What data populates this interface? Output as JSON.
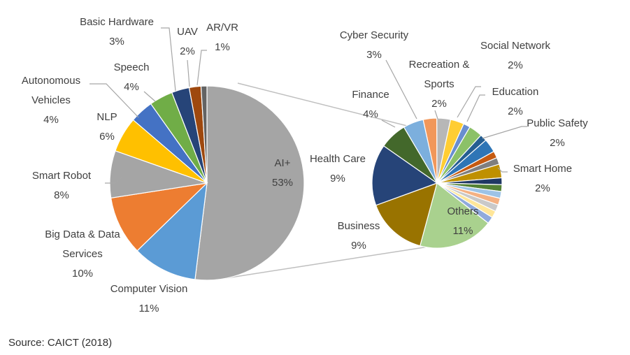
{
  "chart_data": [
    {
      "type": "pie",
      "title": "",
      "slices": [
        {
          "label": "AI+",
          "value": 53,
          "value_label": "53%",
          "color": "#a5a5a5"
        },
        {
          "label": "Computer Vision",
          "value": 11,
          "value_label": "11%",
          "color": "#5b9bd5"
        },
        {
          "label": "Big Data & Data Services",
          "value": 10,
          "value_label": "10%",
          "color": "#ed7d31"
        },
        {
          "label": "Smart Robot",
          "value": 8,
          "value_label": "8%",
          "color": "#a5a5a5"
        },
        {
          "label": "NLP",
          "value": 6,
          "value_label": "6%",
          "color": "#ffc000"
        },
        {
          "label": "Autonomous Vehicles",
          "value": 4,
          "value_label": "4%",
          "color": "#4472c4"
        },
        {
          "label": "Speech",
          "value": 4,
          "value_label": "4%",
          "color": "#70ad47"
        },
        {
          "label": "Basic Hardware",
          "value": 3,
          "value_label": "3%",
          "color": "#264478"
        },
        {
          "label": "UAV",
          "value": 2,
          "value_label": "2%",
          "color": "#9e480e"
        },
        {
          "label": "AR/VR",
          "value": 1,
          "value_label": "1%",
          "color": "#636363"
        }
      ]
    },
    {
      "type": "pie",
      "title": "",
      "exploded_from": "AI+",
      "slices": [
        {
          "label": "Others",
          "value": 11,
          "value_label": "11%",
          "color": "#a9d18e"
        },
        {
          "label": "Business",
          "value": 9,
          "value_label": "9%",
          "color": "#997300"
        },
        {
          "label": "Health Care",
          "value": 9,
          "value_label": "9%",
          "color": "#264478"
        },
        {
          "label": "Finance",
          "value": 4,
          "value_label": "4%",
          "color": "#43682b"
        },
        {
          "label": "Cyber Security",
          "value": 3,
          "value_label": "3%",
          "color": "#7cafdd"
        },
        {
          "label": "Recreation & Sports",
          "value": 2,
          "value_label": "2%",
          "color": "#f1975a"
        },
        {
          "label": "",
          "value": 2,
          "color": "#b7b7b7"
        },
        {
          "label": "Social Network",
          "value": 2,
          "value_label": "2%",
          "color": "#ffcd33"
        },
        {
          "label": "",
          "value": 1,
          "color": "#698ed0"
        },
        {
          "label": "Education",
          "value": 2,
          "value_label": "2%",
          "color": "#8cc168"
        },
        {
          "label": "",
          "value": 1,
          "color": "#255e91"
        },
        {
          "label": "Public Safety",
          "value": 2,
          "value_label": "2%",
          "color": "#2e75b6"
        },
        {
          "label": "",
          "value": 1,
          "color": "#c55a11"
        },
        {
          "label": "",
          "value": 1,
          "color": "#7f7f7f"
        },
        {
          "label": "Smart Home",
          "value": 2,
          "value_label": "2%",
          "color": "#bf9000"
        },
        {
          "label": "",
          "value": 1,
          "color": "#203864"
        },
        {
          "label": "",
          "value": 1,
          "color": "#548235"
        },
        {
          "label": "",
          "value": 1,
          "color": "#9dc3e6"
        },
        {
          "label": "",
          "value": 1,
          "color": "#f4b183"
        },
        {
          "label": "",
          "value": 1,
          "color": "#c9c9c9"
        },
        {
          "label": "",
          "value": 1,
          "color": "#ffe699"
        },
        {
          "label": "",
          "value": 1,
          "color": "#8faadc"
        }
      ]
    }
  ],
  "source": "Source: CAICT (2018)"
}
